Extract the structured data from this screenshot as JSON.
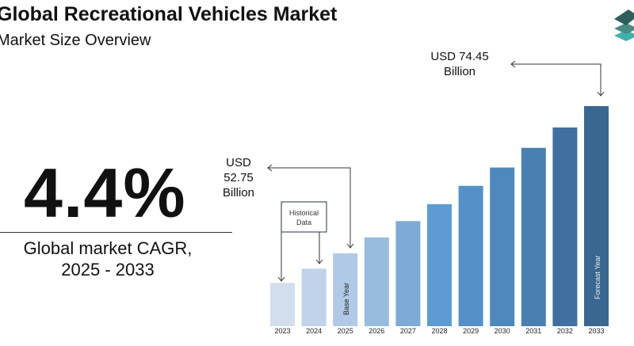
{
  "header": {
    "title": "Global Recreational Vehicles Market",
    "subtitle": "Market Size Overview"
  },
  "kpi": {
    "value": "4.4%",
    "label_line1": "Global market CAGR,",
    "label_line2": "2025 - 2033"
  },
  "annotations": {
    "base_value": [
      "USD",
      "52.75",
      "Billion"
    ],
    "forecast_value": [
      "USD 74.45",
      "Billion"
    ],
    "historical_box": [
      "Historical",
      "Data"
    ],
    "base_year": "Base Year",
    "forecast_year": "Forecast Year"
  },
  "logo": {
    "icon": "stacked-layers-icon",
    "colors": [
      "#2e5e5a",
      "#4a8a85",
      "#3fb0aa"
    ]
  },
  "chart_data": {
    "type": "bar",
    "categories": [
      "2023",
      "2024",
      "2025",
      "2026",
      "2027",
      "2028",
      "2029",
      "2030",
      "2031",
      "2032",
      "2033"
    ],
    "values": [
      48.4,
      50.5,
      52.75,
      55.1,
      57.5,
      60.0,
      62.7,
      65.4,
      68.3,
      71.3,
      74.45
    ],
    "ylabel": "",
    "xlabel": "",
    "colors": [
      "#d3deec",
      "#c0d3ea",
      "#b0c9e6",
      "#98bbe0",
      "#7eaad8",
      "#5f9bd3",
      "#5590c7",
      "#4f88bd",
      "#4a7fb2",
      "#4170a0",
      "#3a6790"
    ],
    "grid": false
  }
}
